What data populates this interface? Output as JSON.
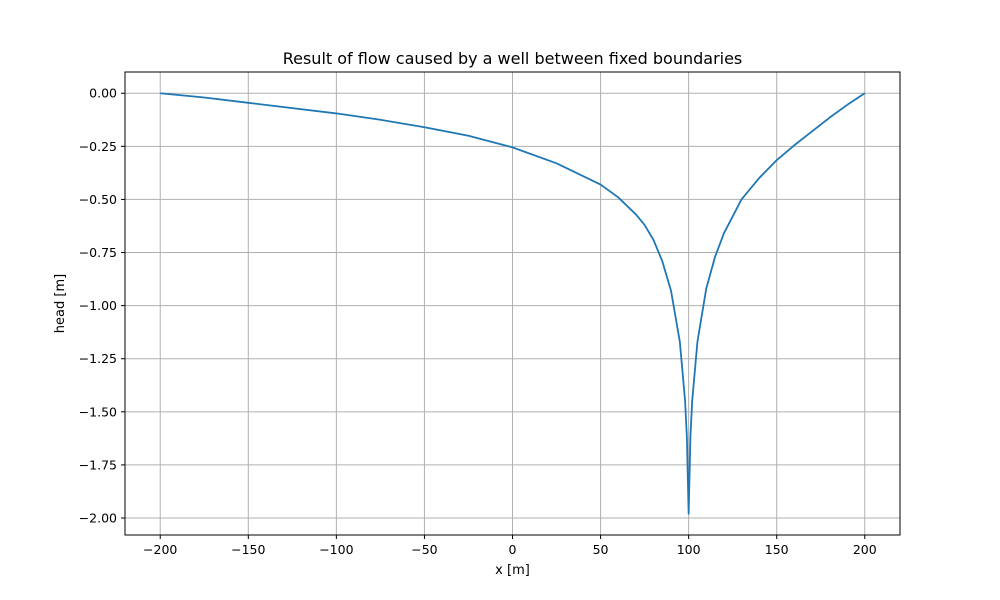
{
  "chart_data": {
    "type": "line",
    "title": "Result of flow caused by a well between fixed boundaries",
    "xlabel": "x [m]",
    "ylabel": "head [m]",
    "xlim": [
      -220,
      220
    ],
    "ylim": [
      -2.08,
      0.1
    ],
    "grid": true,
    "x_ticks": [
      -200,
      -150,
      -100,
      -50,
      0,
      50,
      100,
      150,
      200
    ],
    "x_tick_labels": [
      "−200",
      "−150",
      "−100",
      "−50",
      "0",
      "50",
      "100",
      "150",
      "200"
    ],
    "y_ticks": [
      0.0,
      -0.25,
      -0.5,
      -0.75,
      -1.0,
      -1.25,
      -1.5,
      -1.75,
      -2.0
    ],
    "y_tick_labels": [
      "0.00",
      "−0.25",
      "−0.50",
      "−0.75",
      "−1.00",
      "−1.25",
      "−1.50",
      "−1.75",
      "−2.00"
    ],
    "series": [
      {
        "color": "#1f77b4",
        "x": [
          -200,
          -175,
          -150,
          -125,
          -100,
          -75,
          -50,
          -25,
          0,
          25,
          50,
          60,
          70,
          75,
          80,
          85,
          90,
          95,
          98,
          99,
          99.5,
          100,
          100.5,
          101,
          102,
          105,
          110,
          115,
          120,
          125,
          130,
          140,
          150,
          160,
          170,
          180,
          190,
          200
        ],
        "y": [
          0.0,
          -0.02,
          -0.045,
          -0.07,
          -0.095,
          -0.125,
          -0.16,
          -0.2,
          -0.255,
          -0.33,
          -0.43,
          -0.49,
          -0.57,
          -0.62,
          -0.69,
          -0.79,
          -0.93,
          -1.17,
          -1.45,
          -1.62,
          -1.8,
          -1.98,
          -1.8,
          -1.62,
          -1.45,
          -1.17,
          -0.92,
          -0.77,
          -0.66,
          -0.58,
          -0.5,
          -0.4,
          -0.315,
          -0.245,
          -0.18,
          -0.115,
          -0.055,
          0.0
        ]
      }
    ]
  }
}
